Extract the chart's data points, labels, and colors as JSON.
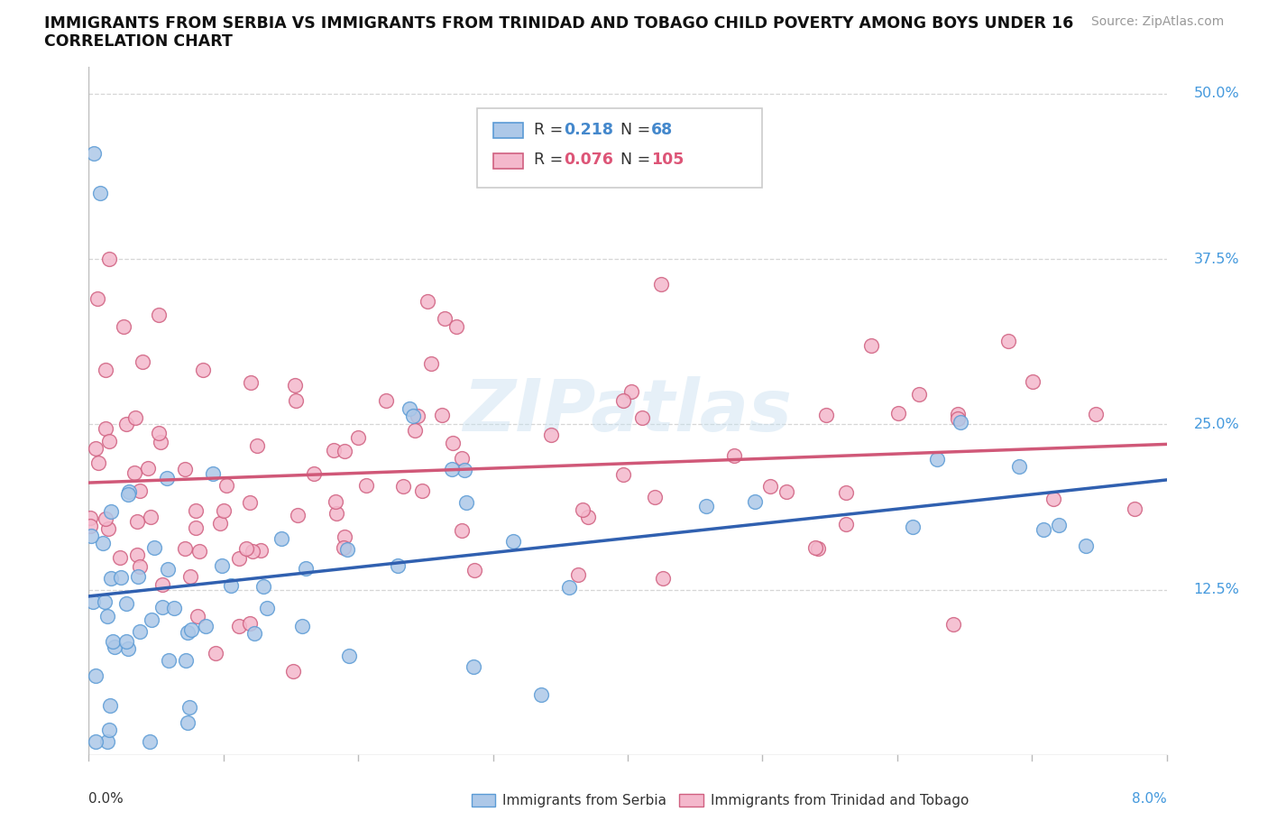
{
  "title_line1": "IMMIGRANTS FROM SERBIA VS IMMIGRANTS FROM TRINIDAD AND TOBAGO CHILD POVERTY AMONG BOYS UNDER 16",
  "title_line2": "CORRELATION CHART",
  "source_text": "Source: ZipAtlas.com",
  "xlim": [
    0.0,
    0.08
  ],
  "ylim": [
    0.0,
    0.52
  ],
  "yticks": [
    0.0,
    0.125,
    0.25,
    0.375,
    0.5
  ],
  "ytick_labels": [
    "",
    "12.5%",
    "25.0%",
    "37.5%",
    "50.0%"
  ],
  "series_serbia": {
    "name": "Immigrants from Serbia",
    "color": "#adc8e8",
    "edge_color": "#5b9bd5",
    "R": 0.218,
    "N": 68,
    "trend_color": "#3060b0"
  },
  "series_trinidad": {
    "name": "Immigrants from Trinidad and Tobago",
    "color": "#f4b8cc",
    "edge_color": "#d06080",
    "R": 0.076,
    "N": 105,
    "trend_color": "#d05878"
  },
  "watermark": "ZIPatlas",
  "bg_color": "#ffffff",
  "grid_color": "#cccccc",
  "axis_color": "#bbbbbb",
  "label_color": "#333333",
  "right_label_color": "#4499dd",
  "title_color": "#111111",
  "source_color": "#999999"
}
